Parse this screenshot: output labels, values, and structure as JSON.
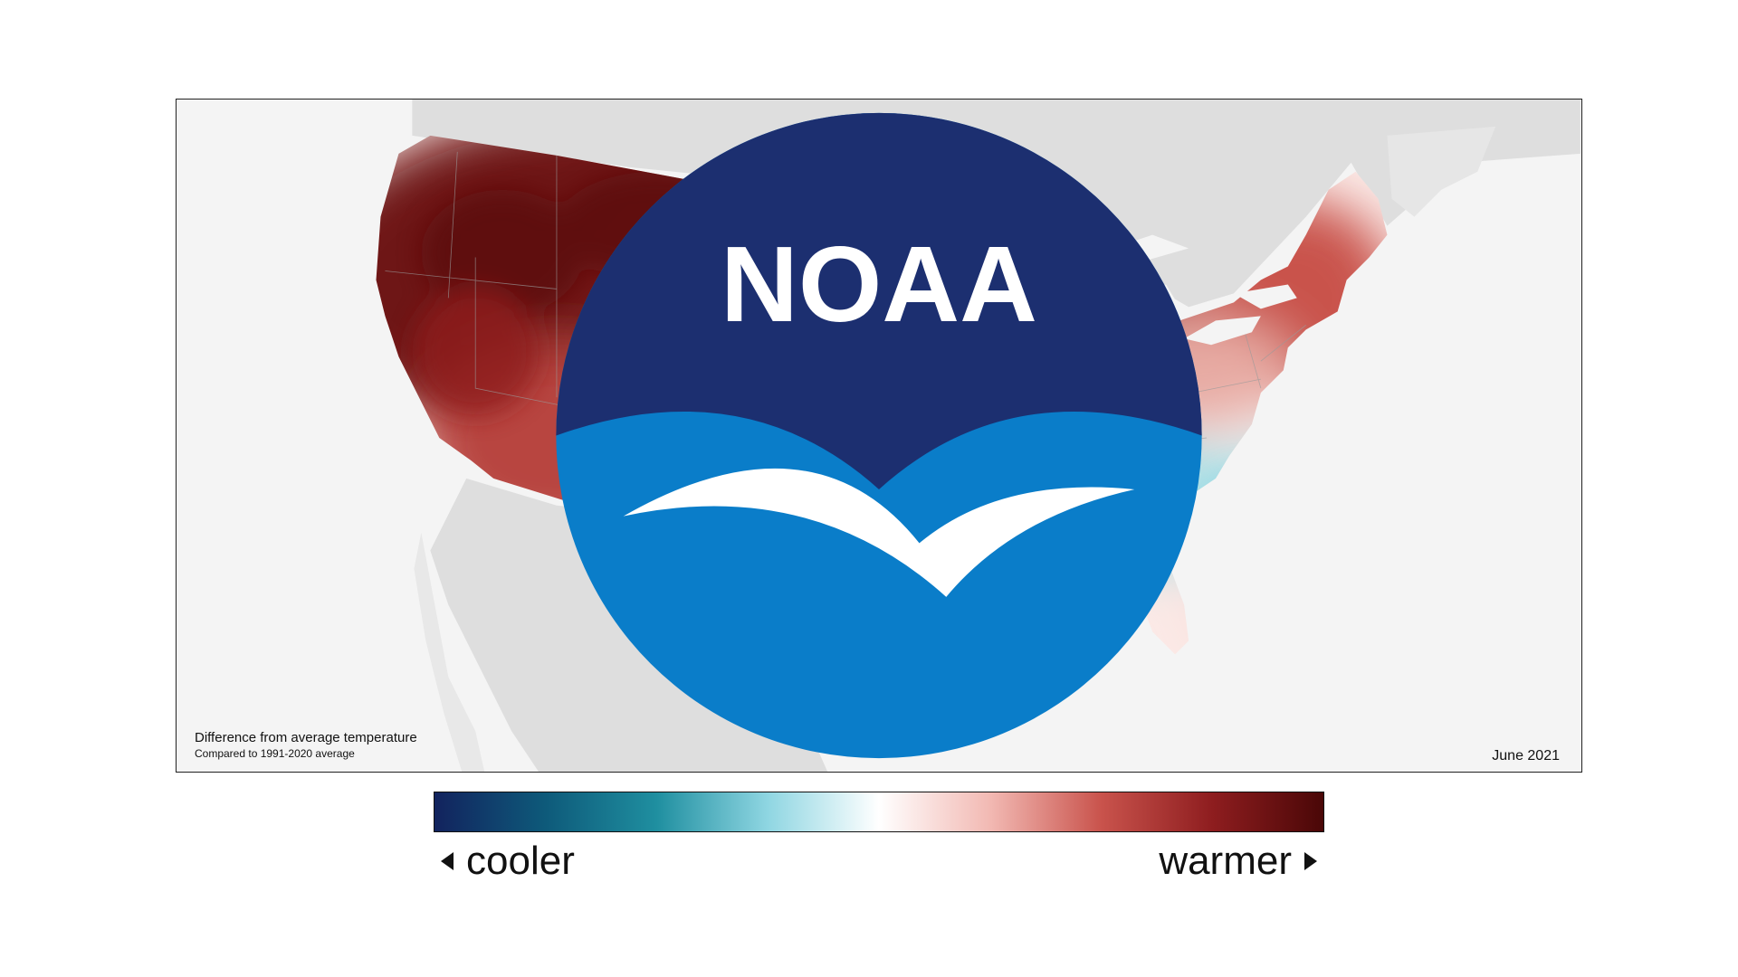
{
  "map": {
    "caption_title": "Difference from average temperature",
    "caption_subtitle": "Compared to 1991-2020 average",
    "date": "June 2021",
    "logo_text": "NOAA",
    "base_land_color": "#dedede",
    "background_color": "#f4f4f4"
  },
  "legend": {
    "cool_label": "cooler",
    "warm_label": "warmer",
    "gradient_colors": [
      "#12235e",
      "#0e5a7a",
      "#1f8fa0",
      "#8fd6e2",
      "#ffffff",
      "#f2b9b3",
      "#c9534c",
      "#8e1d1f",
      "#4a0707"
    ]
  },
  "anomaly_colors": {
    "much_warmer": "#6e1214",
    "warmer": "#a8322f",
    "slightly_warmer": "#d98a84",
    "near_average": "#fbe9e6",
    "slightly_cooler": "#a8dfe6"
  }
}
